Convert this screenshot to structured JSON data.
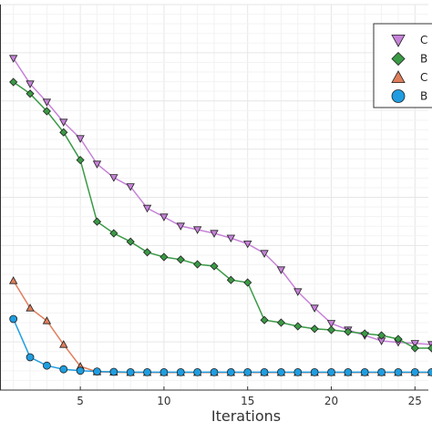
{
  "chart_data": {
    "type": "line",
    "xlabel": "Iterations",
    "ylabel": "",
    "xlim": [
      0.2,
      25.8
    ],
    "ylim": [
      0,
      1
    ],
    "x_ticks": [
      5,
      10,
      15,
      20,
      25
    ],
    "grid": true,
    "legend_position": "top-right",
    "series": [
      {
        "name": "C",
        "color": "#c682d8",
        "marker": "triangle-down",
        "x": [
          1,
          2,
          3,
          4,
          5,
          6,
          7,
          8,
          9,
          10,
          11,
          12,
          13,
          14,
          15,
          16,
          17,
          18,
          19,
          20,
          21,
          22,
          23,
          24,
          25,
          26
        ],
        "y": [
          0.865,
          0.795,
          0.745,
          0.69,
          0.645,
          0.575,
          0.538,
          0.513,
          0.454,
          0.43,
          0.405,
          0.395,
          0.385,
          0.372,
          0.356,
          0.33,
          0.285,
          0.225,
          0.18,
          0.138,
          0.12,
          0.105,
          0.09,
          0.086,
          0.083,
          0.08
        ]
      },
      {
        "name": "B",
        "color": "#3a9a45",
        "marker": "diamond",
        "x": [
          1,
          2,
          3,
          4,
          5,
          6,
          7,
          8,
          9,
          10,
          11,
          12,
          13,
          14,
          15,
          16,
          17,
          18,
          19,
          20,
          21,
          22,
          23,
          24,
          25,
          26
        ],
        "y": [
          0.8,
          0.768,
          0.72,
          0.662,
          0.586,
          0.417,
          0.385,
          0.362,
          0.333,
          0.32,
          0.313,
          0.3,
          0.295,
          0.257,
          0.25,
          0.147,
          0.14,
          0.13,
          0.123,
          0.12,
          0.115,
          0.11,
          0.105,
          0.095,
          0.07,
          0.07
        ]
      },
      {
        "name": "C",
        "color": "#e07e5b",
        "marker": "triangle-up",
        "x": [
          1,
          2,
          3,
          4,
          5,
          6,
          7,
          8,
          9,
          10,
          11,
          12,
          13,
          14,
          15,
          16,
          17,
          18,
          19,
          20,
          21,
          22,
          23,
          24,
          25,
          26
        ],
        "y": [
          0.255,
          0.18,
          0.145,
          0.08,
          0.02,
          0.005,
          0.004,
          0.003,
          0.003,
          0.003,
          0.003,
          0.003,
          0.003,
          0.003,
          0.003,
          0.003,
          0.003,
          0.003,
          0.003,
          0.003,
          0.003,
          0.003,
          0.003,
          0.003,
          0.003,
          0.003
        ]
      },
      {
        "name": "B",
        "color": "#1f9de0",
        "marker": "circle",
        "x": [
          1,
          2,
          3,
          4,
          5,
          6,
          7,
          8,
          9,
          10,
          11,
          12,
          13,
          14,
          15,
          16,
          17,
          18,
          19,
          20,
          21,
          22,
          23,
          24,
          25,
          26
        ],
        "y": [
          0.15,
          0.045,
          0.022,
          0.012,
          0.008,
          0.006,
          0.005,
          0.004,
          0.004,
          0.004,
          0.004,
          0.004,
          0.004,
          0.004,
          0.004,
          0.004,
          0.004,
          0.004,
          0.004,
          0.004,
          0.004,
          0.004,
          0.004,
          0.004,
          0.004,
          0.004
        ]
      }
    ]
  }
}
